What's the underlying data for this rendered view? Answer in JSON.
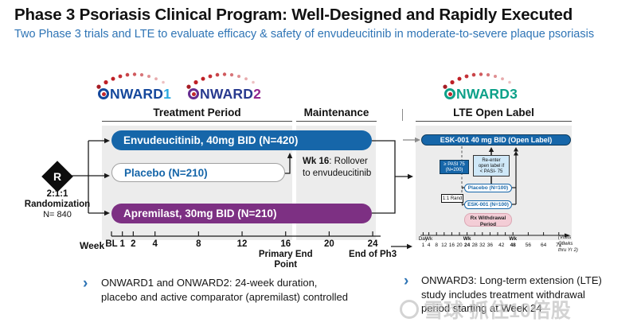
{
  "header": {
    "title": "Phase 3 Psoriasis Clinical Program: Well-Designed and Rapidly Executed",
    "subtitle": "Two Phase 3 trials and LTE to evaluate efficacy & safety of envudeucitinib in moderate-to-severe plaque psoriasis"
  },
  "logos": {
    "onward1": {
      "rest": "NWARD",
      "num": "1"
    },
    "onward2": {
      "rest": "NWARD",
      "num": "2"
    },
    "onward3": {
      "rest": "NWARD",
      "num": "3"
    }
  },
  "colors": {
    "accent_blue": "#1666a9",
    "purple": "#7d3083",
    "onward1_num": "#2aa9e0",
    "onward2_num": "#92278f",
    "onward3_teal": "#0da189",
    "dot_red": "#c1272d",
    "subtitle_blue": "#2e74b5",
    "withdrawal_pink": "#f3cdd6"
  },
  "section_headers": {
    "treatment": "Treatment Period",
    "maintenance": "Maintenance",
    "lte": "LTE Open Label"
  },
  "randomization": {
    "r": "R",
    "ratio": "2:1:1",
    "label": "Randomization",
    "n": "N= 840"
  },
  "arms": {
    "envudeucitinib": "Envudeucitinib, 40mg BID (N=420)",
    "placebo": "Placebo (N=210)",
    "apremilast": "Apremilast, 30mg BID (N=210)"
  },
  "rollover": {
    "bold": "Wk 16",
    "rest": ": Rollover",
    "line2": "to envudeucitinib"
  },
  "left_axis": {
    "label": "Week",
    "ticks": [
      {
        "label": "BL",
        "wk": 0
      },
      {
        "label": "1",
        "wk": 1
      },
      {
        "label": "2",
        "wk": 2
      },
      {
        "label": "4",
        "wk": 4
      },
      {
        "label": "8",
        "wk": 8
      },
      {
        "label": "12",
        "wk": 12
      },
      {
        "label": "16",
        "wk": 16,
        "sub": [
          "Primary End",
          "Point"
        ]
      },
      {
        "label": "20",
        "wk": 20
      },
      {
        "label": "24",
        "wk": 24,
        "sub": [
          "End of Ph3"
        ]
      }
    ]
  },
  "onward3_panel": {
    "open_label_bar": "ESK-001 40 mg BID (Open Label)",
    "pasi_box": [
      "≥ PASI 75",
      "(N=200)"
    ],
    "reenter_box": [
      "Re-enter",
      "open label if",
      "< PASI- 75"
    ],
    "rand_box": "1:1 Rand",
    "placebo_pill": "Placebo (N=100)",
    "esk_pill": "ESK-001 (N=100)",
    "withdrawal": [
      "Rx Withdrawal",
      "Period"
    ]
  },
  "right_axis": {
    "labels": [
      {
        "top": "Day",
        "label": "1",
        "wk": 1
      },
      {
        "top": "Wk",
        "label": "4",
        "wk": 4
      },
      {
        "label": "8",
        "wk": 8
      },
      {
        "label": "12",
        "wk": 12
      },
      {
        "label": "16",
        "wk": 16
      },
      {
        "label": "20",
        "wk": 20
      },
      {
        "top": "Wk",
        "label": "24",
        "wk": 24,
        "bold": true
      },
      {
        "label": "28",
        "wk": 28
      },
      {
        "label": "32",
        "wk": 32
      },
      {
        "label": "36",
        "wk": 36
      },
      {
        "label": "42",
        "wk": 42
      },
      {
        "top": "Wk",
        "label": "48",
        "wk": 48,
        "bold": true
      },
      {
        "label": "56",
        "wk": 56
      },
      {
        "label": "64",
        "wk": 64
      },
      {
        "label": "72",
        "wk": 72
      }
    ],
    "tick_wks": [
      1,
      4,
      8,
      12,
      16,
      20,
      24,
      28,
      32,
      36,
      40,
      44,
      48,
      56,
      64,
      72
    ],
    "note": [
      "(Visits",
      "Q8wks",
      "thru Yr 2)"
    ]
  },
  "bullets": [
    {
      "lines": [
        "ONWARD1 and ONWARD2: 24-week duration,",
        "placebo and active comparator (apremilast) controlled"
      ]
    },
    {
      "lines": [
        "ONWARD3: Long-term extension (LTE)",
        "study includes treatment withdrawal",
        "period starting at Week 24"
      ]
    }
  ],
  "watermark": {
    "text": "雪球 抓住10倍股"
  }
}
